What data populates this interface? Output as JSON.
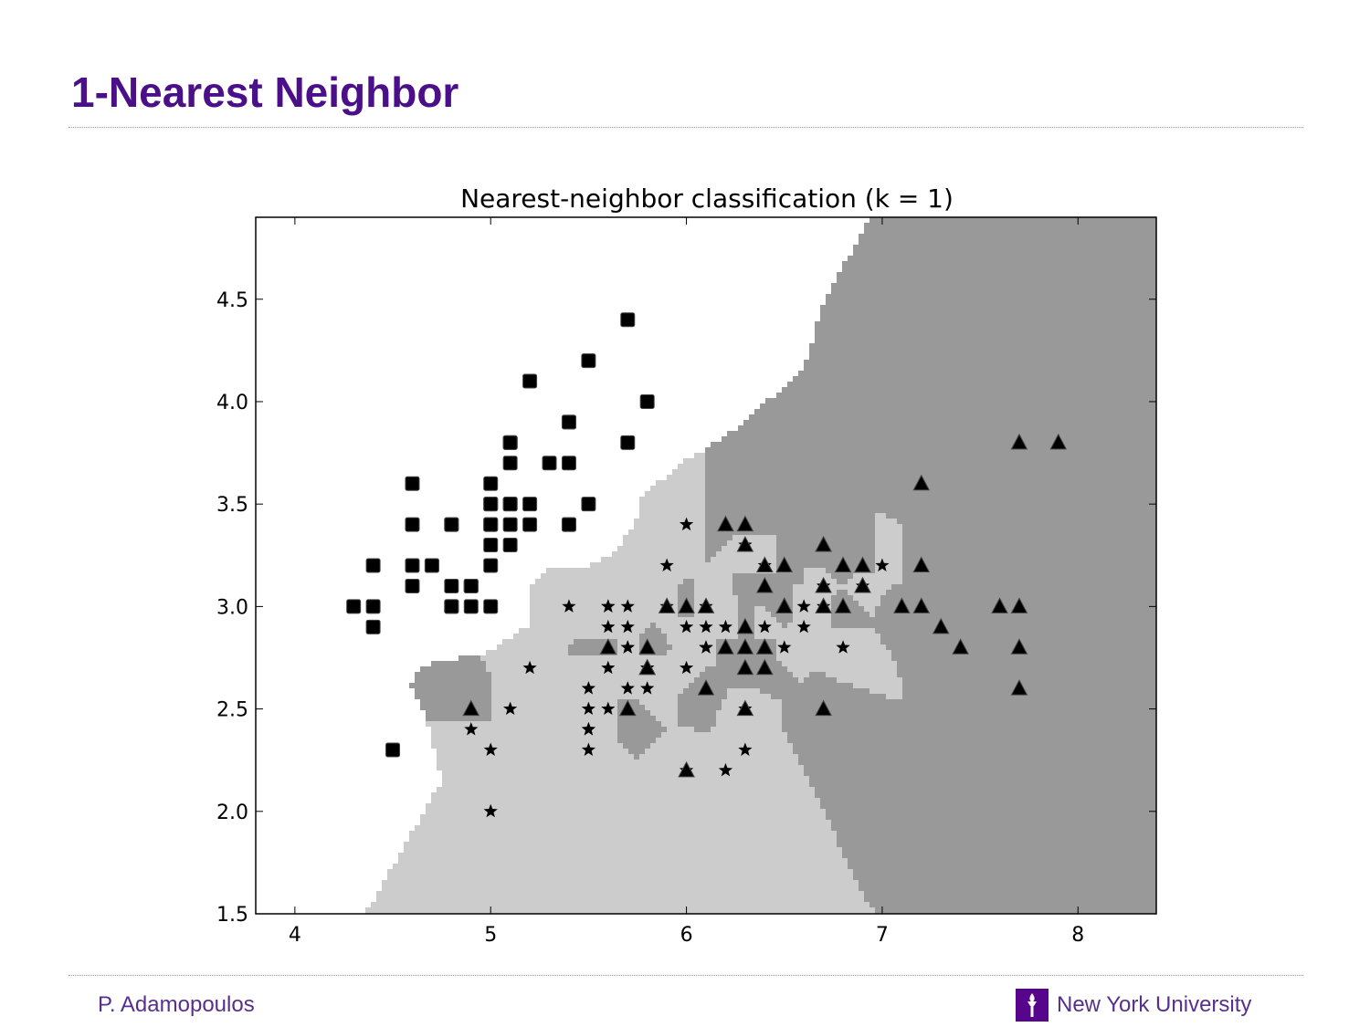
{
  "slide": {
    "title": "1-Nearest Neighbor",
    "footer_left": "P. Adamopoulos",
    "footer_right": "New York University"
  },
  "icons": {
    "university_logo": "nyu-torch-icon",
    "university_color": "#57068c"
  },
  "chart_data": {
    "type": "scatter",
    "title": "Nearest-neighbor classification (k = 1)",
    "xlabel": "",
    "ylabel": "",
    "xlim": [
      3.8,
      8.4
    ],
    "ylim": [
      1.5,
      4.9
    ],
    "xticks": [
      "4",
      "5",
      "6",
      "7",
      "8"
    ],
    "yticks": [
      "1.5",
      "2.0",
      "2.5",
      "3.0",
      "3.5",
      "4.0",
      "4.5"
    ],
    "grid": false,
    "legend": "none",
    "region_colors": {
      "square": "#ffffff",
      "star": "#cccccc",
      "triangle": "#999999"
    },
    "series": [
      {
        "marker": "square",
        "color": "#000000",
        "points": [
          [
            5.1,
            3.5
          ],
          [
            4.9,
            3.0
          ],
          [
            4.7,
            3.2
          ],
          [
            4.6,
            3.1
          ],
          [
            5.0,
            3.6
          ],
          [
            5.4,
            3.9
          ],
          [
            4.6,
            3.4
          ],
          [
            5.0,
            3.4
          ],
          [
            4.4,
            2.9
          ],
          [
            4.9,
            3.1
          ],
          [
            5.4,
            3.7
          ],
          [
            4.8,
            3.4
          ],
          [
            4.8,
            3.0
          ],
          [
            4.3,
            3.0
          ],
          [
            5.8,
            4.0
          ],
          [
            5.7,
            4.4
          ],
          [
            5.4,
            3.9
          ],
          [
            5.1,
            3.5
          ],
          [
            5.7,
            3.8
          ],
          [
            5.1,
            3.8
          ],
          [
            5.4,
            3.4
          ],
          [
            5.1,
            3.7
          ],
          [
            4.6,
            3.6
          ],
          [
            5.1,
            3.3
          ],
          [
            4.8,
            3.4
          ],
          [
            5.0,
            3.0
          ],
          [
            5.0,
            3.4
          ],
          [
            5.2,
            3.5
          ],
          [
            5.2,
            3.4
          ],
          [
            4.7,
            3.2
          ],
          [
            4.8,
            3.1
          ],
          [
            5.4,
            3.4
          ],
          [
            5.2,
            4.1
          ],
          [
            5.5,
            4.2
          ],
          [
            4.9,
            3.1
          ],
          [
            5.0,
            3.2
          ],
          [
            5.5,
            3.5
          ],
          [
            4.9,
            3.1
          ],
          [
            4.4,
            3.0
          ],
          [
            5.1,
            3.4
          ],
          [
            5.0,
            3.5
          ],
          [
            4.5,
            2.3
          ],
          [
            4.4,
            3.2
          ],
          [
            5.0,
            3.5
          ],
          [
            5.1,
            3.8
          ],
          [
            4.8,
            3.0
          ],
          [
            5.1,
            3.8
          ],
          [
            4.6,
            3.2
          ],
          [
            5.3,
            3.7
          ],
          [
            5.0,
            3.3
          ]
        ]
      },
      {
        "marker": "star",
        "color": "#000000",
        "points": [
          [
            7.0,
            3.2
          ],
          [
            6.4,
            3.2
          ],
          [
            6.9,
            3.1
          ],
          [
            5.5,
            2.3
          ],
          [
            6.5,
            2.8
          ],
          [
            5.7,
            2.8
          ],
          [
            6.3,
            3.3
          ],
          [
            4.9,
            2.4
          ],
          [
            6.6,
            2.9
          ],
          [
            5.2,
            2.7
          ],
          [
            5.0,
            2.0
          ],
          [
            5.9,
            3.0
          ],
          [
            6.0,
            2.2
          ],
          [
            6.1,
            2.9
          ],
          [
            5.6,
            2.9
          ],
          [
            6.7,
            3.1
          ],
          [
            5.6,
            3.0
          ],
          [
            5.8,
            2.7
          ],
          [
            6.2,
            2.2
          ],
          [
            5.6,
            2.5
          ],
          [
            5.9,
            3.2
          ],
          [
            6.1,
            2.8
          ],
          [
            6.3,
            2.5
          ],
          [
            6.1,
            2.8
          ],
          [
            6.4,
            2.9
          ],
          [
            6.6,
            3.0
          ],
          [
            6.8,
            2.8
          ],
          [
            6.7,
            3.0
          ],
          [
            6.0,
            2.9
          ],
          [
            5.7,
            2.6
          ],
          [
            5.5,
            2.4
          ],
          [
            5.5,
            2.4
          ],
          [
            5.8,
            2.7
          ],
          [
            6.0,
            2.7
          ],
          [
            5.4,
            3.0
          ],
          [
            6.0,
            3.4
          ],
          [
            6.7,
            3.1
          ],
          [
            6.3,
            2.3
          ],
          [
            5.6,
            3.0
          ],
          [
            5.5,
            2.5
          ],
          [
            5.5,
            2.6
          ],
          [
            6.1,
            3.0
          ],
          [
            5.8,
            2.6
          ],
          [
            5.0,
            2.3
          ],
          [
            5.6,
            2.7
          ],
          [
            5.7,
            3.0
          ],
          [
            5.7,
            2.9
          ],
          [
            6.2,
            2.9
          ],
          [
            5.1,
            2.5
          ],
          [
            5.7,
            2.8
          ]
        ]
      },
      {
        "marker": "triangle",
        "color": "#000000",
        "points": [
          [
            6.3,
            3.3
          ],
          [
            5.8,
            2.7
          ],
          [
            7.1,
            3.0
          ],
          [
            6.3,
            2.9
          ],
          [
            6.5,
            3.0
          ],
          [
            7.6,
            3.0
          ],
          [
            4.9,
            2.5
          ],
          [
            7.3,
            2.9
          ],
          [
            6.7,
            2.5
          ],
          [
            7.2,
            3.6
          ],
          [
            6.5,
            3.2
          ],
          [
            6.4,
            2.7
          ],
          [
            6.8,
            3.0
          ],
          [
            5.7,
            2.5
          ],
          [
            5.8,
            2.8
          ],
          [
            6.4,
            3.2
          ],
          [
            6.5,
            3.0
          ],
          [
            7.7,
            3.8
          ],
          [
            7.7,
            2.6
          ],
          [
            6.0,
            2.2
          ],
          [
            6.9,
            3.2
          ],
          [
            5.6,
            2.8
          ],
          [
            7.7,
            2.8
          ],
          [
            6.3,
            2.7
          ],
          [
            6.7,
            3.3
          ],
          [
            7.2,
            3.2
          ],
          [
            6.2,
            2.8
          ],
          [
            6.1,
            3.0
          ],
          [
            6.4,
            2.8
          ],
          [
            7.2,
            3.0
          ],
          [
            7.4,
            2.8
          ],
          [
            7.9,
            3.8
          ],
          [
            6.4,
            2.8
          ],
          [
            6.3,
            2.8
          ],
          [
            6.1,
            2.6
          ],
          [
            7.7,
            3.0
          ],
          [
            6.3,
            3.4
          ],
          [
            6.4,
            3.1
          ],
          [
            6.0,
            3.0
          ],
          [
            6.9,
            3.1
          ],
          [
            6.7,
            3.1
          ],
          [
            6.9,
            3.1
          ],
          [
            5.8,
            2.7
          ],
          [
            6.8,
            3.2
          ],
          [
            6.7,
            3.3
          ],
          [
            6.7,
            3.0
          ],
          [
            6.3,
            2.5
          ],
          [
            6.5,
            3.0
          ],
          [
            6.2,
            3.4
          ],
          [
            5.9,
            3.0
          ]
        ]
      }
    ]
  }
}
